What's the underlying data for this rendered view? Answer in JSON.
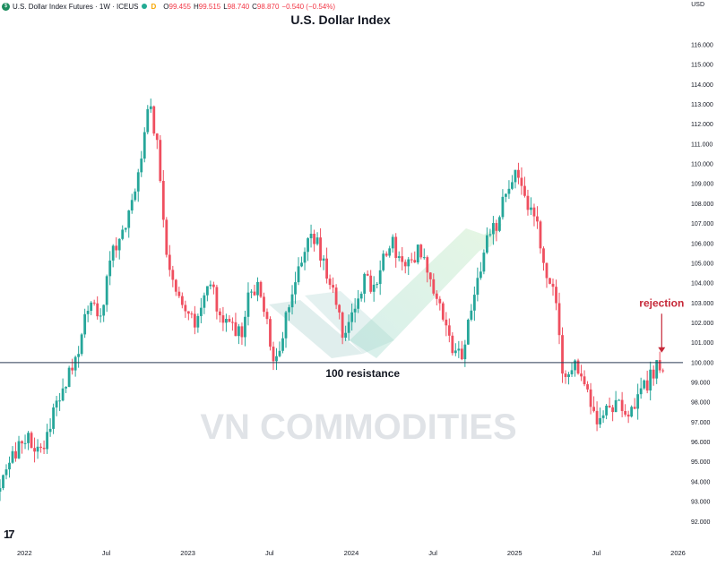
{
  "header": {
    "symbol": "U.S. Dollar Index Futures · 1W · ICEUS",
    "open_label": "O",
    "open": "99.455",
    "high_label": "H",
    "high": "99.515",
    "low_label": "L",
    "low": "98.740",
    "close_label": "C",
    "close": "98.870",
    "change": "−0.540 (−0.54%)",
    "badge": "D"
  },
  "currency": "USD",
  "colors": {
    "up": "#26a69a",
    "down": "#ef4f5f",
    "annotation": "#c62838",
    "line": "#2a3a55"
  },
  "chart_data": {
    "type": "candlestick",
    "title": "U.S. Dollar Index",
    "interval": "1W",
    "x_tick_labels": [
      "2022",
      "Jul",
      "2023",
      "Jul",
      "2024",
      "Jul",
      "2025",
      "Jul",
      "2026"
    ],
    "y_tick_labels": [
      "92.000",
      "93.000",
      "94.000",
      "95.000",
      "96.000",
      "97.000",
      "98.000",
      "99.000",
      "100.000",
      "101.000",
      "102.000",
      "103.000",
      "104.000",
      "105.000",
      "106.000",
      "107.000",
      "108.000",
      "109.000",
      "110.000",
      "111.000",
      "112.000",
      "113.000",
      "114.000",
      "115.000",
      "116.000"
    ],
    "ylim": [
      91.2,
      116.9
    ],
    "xlim": [
      2021.85,
      2026.03
    ],
    "path_points": [
      [
        2021.85,
        93.5
      ],
      [
        2021.92,
        95.2
      ],
      [
        2021.97,
        96.0
      ],
      [
        2022.03,
        96.3
      ],
      [
        2022.08,
        95.5
      ],
      [
        2022.13,
        95.8
      ],
      [
        2022.18,
        97.8
      ],
      [
        2022.23,
        98.6
      ],
      [
        2022.28,
        99.6
      ],
      [
        2022.33,
        100.7
      ],
      [
        2022.38,
        102.8
      ],
      [
        2022.42,
        103.2
      ],
      [
        2022.46,
        101.8
      ],
      [
        2022.5,
        104.0
      ],
      [
        2022.55,
        105.8
      ],
      [
        2022.58,
        106.4
      ],
      [
        2022.62,
        107.0
      ],
      [
        2022.67,
        108.6
      ],
      [
        2022.71,
        109.9
      ],
      [
        2022.73,
        111.6
      ],
      [
        2022.75,
        113.0
      ],
      [
        2022.78,
        112.4
      ],
      [
        2022.82,
        110.6
      ],
      [
        2022.85,
        107.4
      ],
      [
        2022.88,
        105.0
      ],
      [
        2022.92,
        104.0
      ],
      [
        2022.96,
        103.4
      ],
      [
        2023.0,
        102.8
      ],
      [
        2023.04,
        101.8
      ],
      [
        2023.08,
        102.8
      ],
      [
        2023.13,
        104.2
      ],
      [
        2023.17,
        103.1
      ],
      [
        2023.21,
        102.4
      ],
      [
        2023.25,
        101.9
      ],
      [
        2023.29,
        101.4
      ],
      [
        2023.33,
        101.6
      ],
      [
        2023.38,
        103.6
      ],
      [
        2023.42,
        103.9
      ],
      [
        2023.46,
        102.6
      ],
      [
        2023.5,
        101.4
      ],
      [
        2023.54,
        99.8
      ],
      [
        2023.58,
        101.6
      ],
      [
        2023.62,
        102.8
      ],
      [
        2023.67,
        104.4
      ],
      [
        2023.71,
        105.6
      ],
      [
        2023.75,
        106.4
      ],
      [
        2023.79,
        106.1
      ],
      [
        2023.83,
        105.0
      ],
      [
        2023.88,
        103.6
      ],
      [
        2023.92,
        102.4
      ],
      [
        2023.96,
        101.0
      ],
      [
        2024.0,
        102.5
      ],
      [
        2024.04,
        103.6
      ],
      [
        2024.08,
        104.1
      ],
      [
        2024.12,
        104.0
      ],
      [
        2024.17,
        104.5
      ],
      [
        2024.21,
        105.8
      ],
      [
        2024.25,
        106.0
      ],
      [
        2024.29,
        105.0
      ],
      [
        2024.33,
        104.6
      ],
      [
        2024.38,
        105.4
      ],
      [
        2024.42,
        105.6
      ],
      [
        2024.46,
        104.8
      ],
      [
        2024.5,
        104.0
      ],
      [
        2024.54,
        103.0
      ],
      [
        2024.58,
        101.6
      ],
      [
        2024.62,
        100.5
      ],
      [
        2024.67,
        100.2
      ],
      [
        2024.71,
        101.8
      ],
      [
        2024.75,
        103.6
      ],
      [
        2024.79,
        104.4
      ],
      [
        2024.83,
        106.1
      ],
      [
        2024.88,
        106.8
      ],
      [
        2024.92,
        107.9
      ],
      [
        2024.96,
        108.5
      ],
      [
        2025.0,
        109.4
      ],
      [
        2025.04,
        108.7
      ],
      [
        2025.08,
        107.9
      ],
      [
        2025.12,
        107.2
      ],
      [
        2025.15,
        106.6
      ],
      [
        2025.18,
        104.4
      ],
      [
        2025.21,
        103.8
      ],
      [
        2025.25,
        103.2
      ],
      [
        2025.29,
        99.6
      ],
      [
        2025.33,
        99.3
      ],
      [
        2025.36,
        100.1
      ],
      [
        2025.4,
        99.4
      ],
      [
        2025.44,
        98.4
      ],
      [
        2025.48,
        97.6
      ],
      [
        2025.52,
        97.1
      ],
      [
        2025.56,
        97.9
      ],
      [
        2025.6,
        97.6
      ],
      [
        2025.65,
        97.9
      ],
      [
        2025.69,
        97.4
      ],
      [
        2025.73,
        97.9
      ],
      [
        2025.77,
        98.7
      ],
      [
        2025.81,
        99.0
      ],
      [
        2025.85,
        99.6
      ],
      [
        2025.88,
        99.9
      ],
      [
        2025.9,
        99.5
      ],
      [
        2025.92,
        98.9
      ]
    ],
    "resistance": {
      "value": 100.0,
      "label": "100 resistance"
    },
    "annotation": {
      "text": "rejection",
      "x": 2025.9,
      "y": 103.0,
      "arrow_to": [
        2025.9,
        100.5
      ]
    }
  },
  "watermark": "VN COMMODITIES",
  "logo_text": "17"
}
